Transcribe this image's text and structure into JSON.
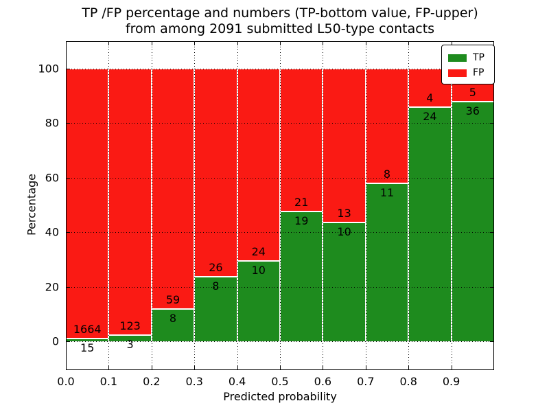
{
  "title": {
    "line1": "TP /FP percentage and numbers (TP-bottom value, FP-upper)",
    "line2": "from among 2091 submitted L50-type contacts"
  },
  "axes": {
    "xlabel": "Predicted probability",
    "ylabel": "Percentage",
    "xtick_labels": [
      "0.0",
      "0.1",
      "0.2",
      "0.3",
      "0.4",
      "0.5",
      "0.6",
      "0.7",
      "0.8",
      "0.9"
    ],
    "ytick_labels": [
      "0",
      "20",
      "40",
      "60",
      "80",
      "100"
    ],
    "ytick_values": [
      0,
      20,
      40,
      60,
      80,
      100
    ]
  },
  "legend": {
    "items": [
      {
        "label": "TP",
        "color": "#1e8b1e"
      },
      {
        "label": "FP",
        "color": "#fa1a14"
      }
    ],
    "position": "upper-right"
  },
  "chart_data": {
    "type": "bar",
    "stacked": true,
    "normalized_to_percent": 100,
    "title": "TP /FP percentage and numbers (TP-bottom value, FP-upper) from among 2091 submitted L50-type contacts",
    "xlabel": "Predicted probability",
    "ylabel": "Percentage",
    "x_bin_start": [
      0.0,
      0.1,
      0.2,
      0.3,
      0.4,
      0.5,
      0.6,
      0.7,
      0.8,
      0.9
    ],
    "x_bin_width": 0.1,
    "series": [
      {
        "name": "TP",
        "color": "#1e8b1e",
        "counts": [
          15,
          3,
          8,
          8,
          10,
          19,
          10,
          11,
          24,
          36
        ]
      },
      {
        "name": "FP",
        "color": "#fa1a14",
        "counts": [
          1664,
          123,
          59,
          26,
          24,
          21,
          13,
          8,
          4,
          5
        ]
      }
    ],
    "tp_percent_of_bin": [
      0.89,
      2.38,
      11.94,
      23.53,
      29.41,
      47.5,
      43.48,
      57.89,
      85.71,
      87.8
    ],
    "total_contacts": 2091,
    "xlim": [
      0.0,
      1.0
    ],
    "ylim": [
      -10.6,
      109.9
    ],
    "grid": "dotted, both axes, drawn above bars",
    "legend_position": "upper right"
  }
}
